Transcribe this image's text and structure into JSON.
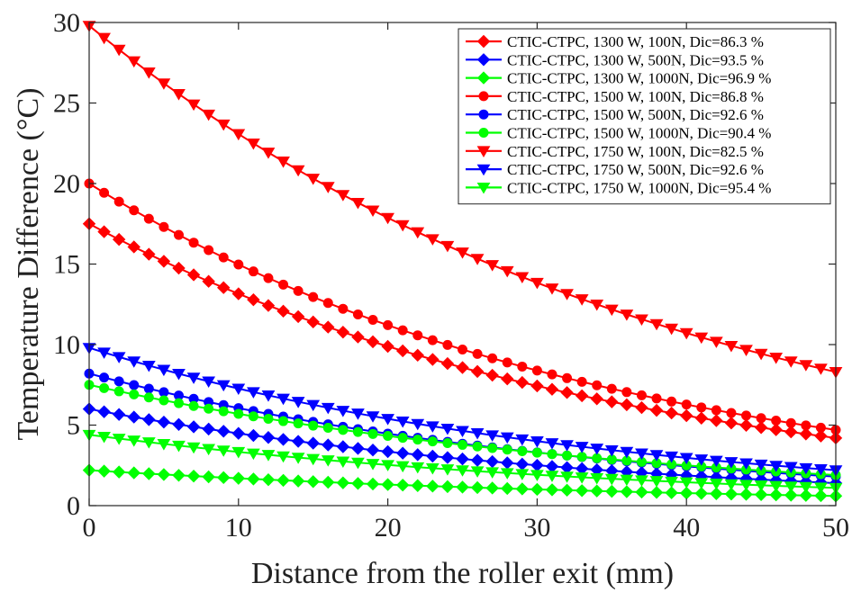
{
  "chart_data": {
    "type": "line",
    "xlabel": "Distance from the roller exit (mm)",
    "ylabel": "Temperature Difference (°C)",
    "xlim": [
      0,
      50
    ],
    "ylim": [
      0,
      30
    ],
    "xticks": [
      0,
      10,
      20,
      30,
      40,
      50
    ],
    "yticks": [
      0,
      5,
      10,
      15,
      20,
      25,
      30
    ],
    "grid": false,
    "legend_position": "top-right",
    "x_step": 1,
    "series": [
      {
        "name": "CTIC-CTPC, 1300 W, 100N, Dic=86.3 %",
        "color": "#ff0000",
        "marker": "diamond",
        "start": 17.5,
        "end": 4.2
      },
      {
        "name": "CTIC-CTPC, 1300 W, 500N, Dic=93.5 %",
        "color": "#0000ff",
        "marker": "diamond",
        "start": 6.0,
        "end": 1.4
      },
      {
        "name": "CTIC-CTPC, 1300 W, 1000N, Dic=96.9 %",
        "color": "#00ff00",
        "marker": "diamond",
        "start": 2.2,
        "end": 0.6
      },
      {
        "name": "CTIC-CTPC, 1500 W, 100N, Dic=86.8 %",
        "color": "#ff0000",
        "marker": "circle",
        "start": 20.0,
        "end": 4.7
      },
      {
        "name": "CTIC-CTPC, 1500 W, 500N, Dic=92.6 %",
        "color": "#0000ff",
        "marker": "circle",
        "start": 8.2,
        "end": 1.8
      },
      {
        "name": "CTIC-CTPC, 1500 W, 1000N, Dic=90.4 %",
        "color": "#00ff00",
        "marker": "circle",
        "start": 7.5,
        "end": 1.9
      },
      {
        "name": "CTIC-CTPC, 1750 W, 100N, Dic=82.5 %",
        "color": "#ff0000",
        "marker": "triangle-down",
        "start": 29.8,
        "end": 8.3
      },
      {
        "name": "CTIC-CTPC, 1750 W, 500N, Dic=92.6 %",
        "color": "#0000ff",
        "marker": "triangle-down",
        "start": 9.8,
        "end": 2.2
      },
      {
        "name": "CTIC-CTPC, 1750 W, 1000N, Dic=95.4 %",
        "color": "#00ff00",
        "marker": "triangle-down",
        "start": 4.4,
        "end": 1.1
      }
    ]
  }
}
